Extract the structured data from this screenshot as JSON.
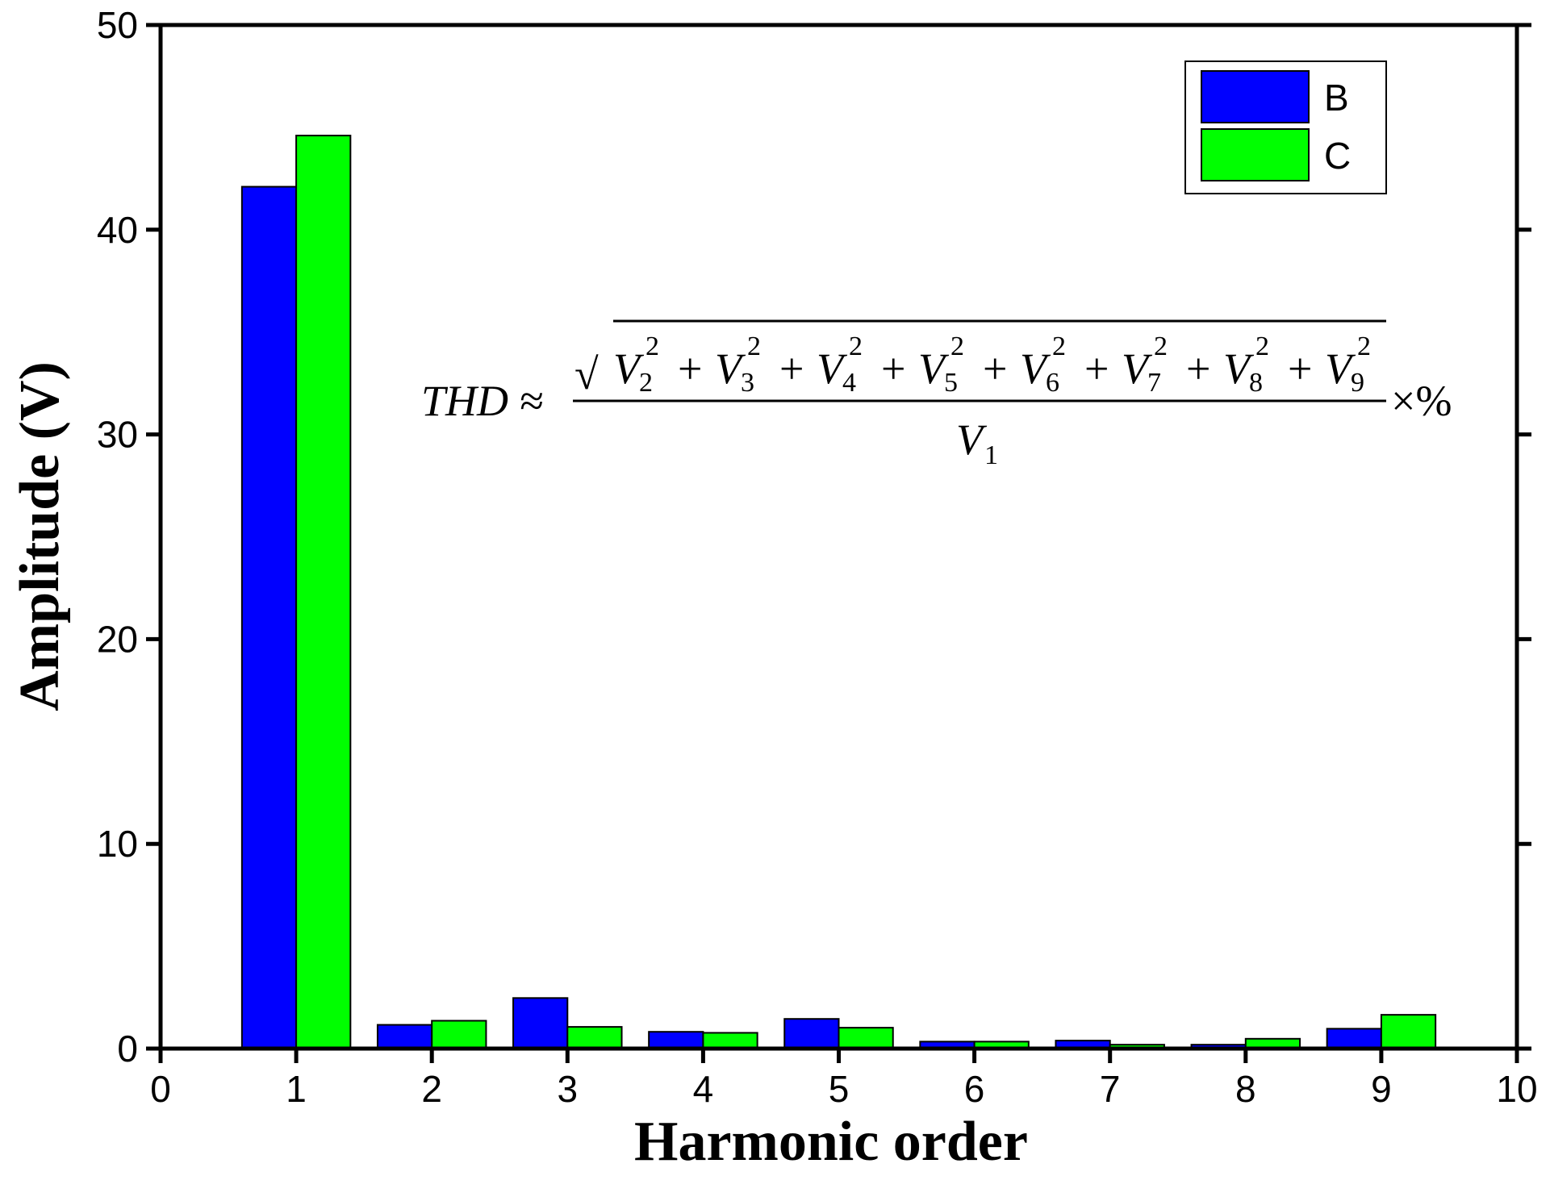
{
  "chart_data": {
    "type": "bar",
    "xlabel": "Harmonic order",
    "ylabel": "Amplitude (V)",
    "x": [
      1,
      2,
      3,
      4,
      5,
      6,
      7,
      8,
      9
    ],
    "series": [
      {
        "name": "B",
        "color": "#0000ff",
        "values": [
          42.1,
          1.16,
          2.47,
          0.82,
          1.45,
          0.34,
          0.39,
          0.19,
          0.97
        ]
      },
      {
        "name": "C",
        "color": "#00ff00",
        "values": [
          44.6,
          1.36,
          1.06,
          0.77,
          1.02,
          0.34,
          0.19,
          0.48,
          1.65
        ]
      }
    ],
    "xlim": [
      0,
      10
    ],
    "xticks": [
      0,
      1,
      2,
      3,
      4,
      5,
      6,
      7,
      8,
      9,
      10
    ],
    "ylim": [
      0,
      50
    ],
    "yticks": [
      0,
      10,
      20,
      30,
      40,
      50
    ],
    "grid": false,
    "legend": "upper right",
    "annotation": {
      "lhs": "THD ≈",
      "radical": "√",
      "operator": "+",
      "numerator": [
        {
          "base": "V",
          "sub": "2",
          "sup": "2"
        },
        {
          "base": "V",
          "sub": "3",
          "sup": "2"
        },
        {
          "base": "V",
          "sub": "4",
          "sup": "2"
        },
        {
          "base": "V",
          "sub": "5",
          "sup": "2"
        },
        {
          "base": "V",
          "sub": "6",
          "sup": "2"
        },
        {
          "base": "V",
          "sub": "7",
          "sup": "2"
        },
        {
          "base": "V",
          "sub": "8",
          "sup": "2"
        },
        {
          "base": "V",
          "sub": "9",
          "sup": "2"
        }
      ],
      "denominator": {
        "base": "V",
        "sub": "1"
      },
      "rhs": "×%"
    }
  }
}
